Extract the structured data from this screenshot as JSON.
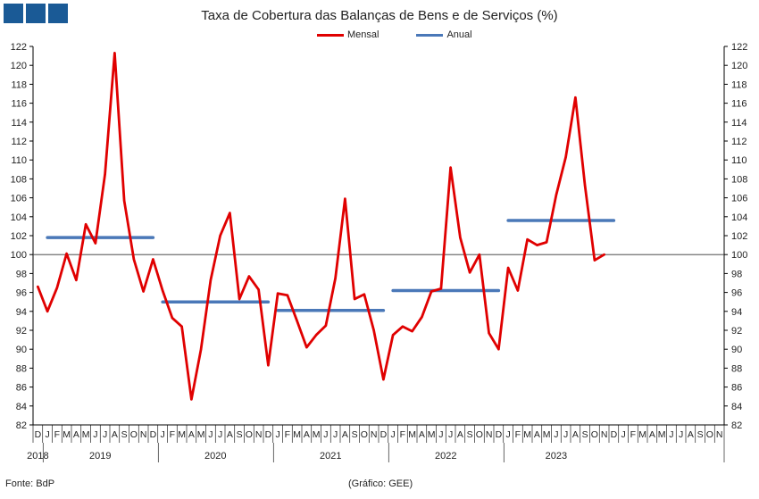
{
  "chart_data": {
    "type": "line",
    "title": "Taxa de Cobertura das Balanças de Bens e de Serviços (%)",
    "ylim": [
      82,
      122
    ],
    "yticks": [
      82,
      84,
      86,
      88,
      90,
      92,
      94,
      96,
      98,
      100,
      102,
      104,
      106,
      108,
      110,
      112,
      114,
      116,
      118,
      120,
      122
    ],
    "reference_line": 100,
    "grid": false,
    "legend_position": "top-center",
    "month_labels": [
      "D",
      "J",
      "F",
      "M",
      "A",
      "M",
      "J",
      "J",
      "A",
      "S",
      "O",
      "N",
      "D",
      "J",
      "F",
      "M",
      "A",
      "M",
      "J",
      "J",
      "A",
      "S",
      "O",
      "N",
      "D",
      "J",
      "F",
      "M",
      "A",
      "M",
      "J",
      "J",
      "A",
      "S",
      "O",
      "N",
      "D",
      "J",
      "F",
      "M",
      "A",
      "M",
      "J",
      "J",
      "A",
      "S",
      "O",
      "N",
      "D",
      "J",
      "F",
      "M",
      "A",
      "M",
      "J",
      "J",
      "A",
      "S",
      "O",
      "N",
      "D",
      "J",
      "F",
      "M",
      "A",
      "M",
      "J",
      "J",
      "A",
      "S",
      "O",
      "N"
    ],
    "year_labels": [
      {
        "label": "2018",
        "start": 0,
        "end": 0
      },
      {
        "label": "2019",
        "start": 1,
        "end": 12
      },
      {
        "label": "2020",
        "start": 13,
        "end": 24
      },
      {
        "label": "2021",
        "start": 25,
        "end": 36
      },
      {
        "label": "2022",
        "start": 37,
        "end": 48
      },
      {
        "label": "2023",
        "start": 49,
        "end": 59
      }
    ],
    "series": [
      {
        "name": "Mensal",
        "color": "#e00000",
        "values": [
          96.6,
          94.0,
          96.5,
          100.1,
          97.3,
          103.2,
          101.2,
          108.5,
          121.3,
          105.7,
          99.5,
          96.1,
          99.5,
          96.2,
          93.3,
          92.4,
          84.7,
          90.0,
          97.3,
          102.0,
          104.4,
          95.3,
          97.7,
          96.3,
          88.3,
          95.9,
          95.7,
          93.0,
          90.2,
          91.5,
          92.5,
          97.5,
          105.9,
          95.3,
          95.8,
          92.0,
          86.8,
          91.5,
          92.4,
          91.9,
          93.4,
          96.1,
          96.4,
          109.2,
          101.8,
          98.1,
          100.0,
          91.7,
          90.0,
          98.6,
          96.2,
          101.6,
          101.0,
          101.3,
          106.3,
          110.3,
          116.6,
          107.3,
          99.4,
          100.0
        ]
      },
      {
        "name": "Anual",
        "color": "#4a78b8",
        "segments": [
          {
            "start": 1,
            "end": 12,
            "value": 101.8
          },
          {
            "start": 13,
            "end": 24,
            "value": 95.0
          },
          {
            "start": 25,
            "end": 36,
            "value": 94.1
          },
          {
            "start": 37,
            "end": 48,
            "value": 96.2
          },
          {
            "start": 49,
            "end": 60,
            "value": 103.6
          }
        ]
      }
    ]
  },
  "footer": {
    "source": "Fonte: BdP",
    "credit": "(Gráfico: GEE)"
  }
}
